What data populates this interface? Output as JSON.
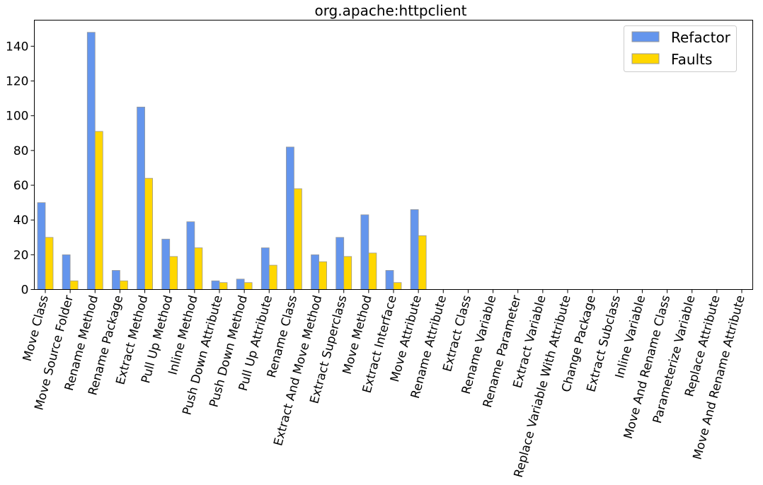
{
  "chart_data": {
    "type": "bar",
    "title": "org.apache:httpclient",
    "xlabel": "",
    "ylabel": "",
    "ylim": [
      0,
      155
    ],
    "yticks": [
      0,
      20,
      40,
      60,
      80,
      100,
      120,
      140
    ],
    "grid": false,
    "legend_position": "top-right",
    "categories": [
      "Move Class",
      "Move Source Folder",
      "Rename Method",
      "Rename Package",
      "Extract Method",
      "Pull Up Method",
      "Inline Method",
      "Push Down Attribute",
      "Push Down Method",
      "Pull Up Attribute",
      "Rename Class",
      "Extract And Move Method",
      "Extract Superclass",
      "Move Method",
      "Extract Interface",
      "Move Attribute",
      "Rename Attribute",
      "Extract Class",
      "Rename Variable",
      "Rename Parameter",
      "Extract Variable",
      "Replace Variable With Attribute",
      "Change Package",
      "Extract Subclass",
      "Inline Variable",
      "Move And Rename Class",
      "Parameterize Variable",
      "Replace Attribute",
      "Move And Rename Attribute"
    ],
    "series": [
      {
        "name": "Refactor",
        "color": "#6495ed",
        "values": [
          50,
          20,
          148,
          11,
          105,
          29,
          39,
          5,
          6,
          24,
          82,
          20,
          30,
          43,
          11,
          46,
          0,
          0,
          0,
          0,
          0,
          0,
          0,
          0,
          0,
          0,
          0,
          0,
          0
        ]
      },
      {
        "name": "Faults",
        "color": "#ffd700",
        "values": [
          30,
          5,
          91,
          5,
          64,
          19,
          24,
          4,
          4,
          14,
          58,
          16,
          19,
          21,
          4,
          31,
          0,
          0,
          0,
          0,
          0,
          0,
          0,
          0,
          0,
          0,
          0,
          0,
          0
        ]
      }
    ]
  }
}
